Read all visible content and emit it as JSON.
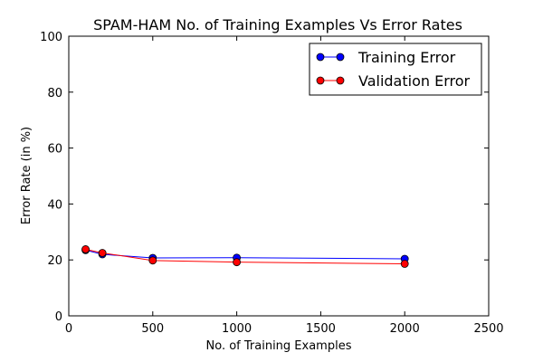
{
  "chart_data": {
    "type": "line",
    "title": "SPAM-HAM No. of Training Examples Vs Error Rates",
    "xlabel": "No. of Training Examples",
    "ylabel": "Error Rate (in %)",
    "xlim": [
      0,
      2500
    ],
    "ylim": [
      0,
      100
    ],
    "xticks": [
      0,
      500,
      1000,
      1500,
      2000,
      2500
    ],
    "yticks": [
      0,
      20,
      40,
      60,
      80,
      100
    ],
    "grid": false,
    "legend_position": "top-right",
    "x": [
      100,
      200,
      500,
      1000,
      2000
    ],
    "series": [
      {
        "name": "Training Error",
        "color": "#0000ff",
        "marker": "circle",
        "values": [
          23.5,
          22.0,
          20.7,
          20.8,
          20.4
        ]
      },
      {
        "name": "Validation Error",
        "color": "#ff0000",
        "marker": "circle",
        "values": [
          23.8,
          22.5,
          19.8,
          19.2,
          18.6
        ]
      }
    ]
  }
}
